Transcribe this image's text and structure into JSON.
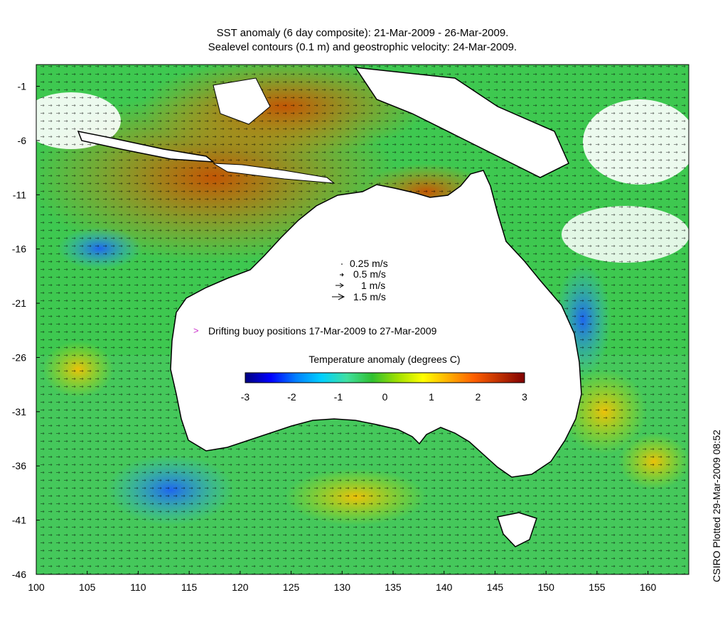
{
  "title_line1": "SST anomaly (6 day composite): 21-Mar-2009 - 26-Mar-2009.",
  "title_line2": "Sealevel contours (0.1 m) and geostrophic velocity: 24-Mar-2009.",
  "credit": "CSIRO Plotted 29-Mar-2009 08:52",
  "map": {
    "lon_range": [
      100,
      164
    ],
    "lat_range": [
      -46,
      1
    ],
    "x_ticks": [
      "100",
      "105",
      "110",
      "115",
      "120",
      "125",
      "130",
      "135",
      "140",
      "145",
      "150",
      "155",
      "160"
    ],
    "y_ticks": [
      "-1",
      "-6",
      "-11",
      "-16",
      "-21",
      "-26",
      "-31",
      "-36",
      "-41",
      "-46"
    ]
  },
  "velocity_legend": {
    "entries": [
      "0.25 m/s",
      "0.5 m/s",
      "1 m/s",
      "1.5 m/s"
    ]
  },
  "buoy_legend": {
    "label": "Drifting buoy positions 17-Mar-2009 to 27-Mar-2009",
    "marker": ">",
    "color": "#cc33cc"
  },
  "colorbar": {
    "title": "Temperature anomaly (degrees C)",
    "ticks": [
      "-3",
      "-2",
      "-1",
      "0",
      "1",
      "2",
      "3"
    ],
    "range": [
      -3,
      3
    ],
    "colors": [
      "#00007f",
      "#0000ff",
      "#0080ff",
      "#00d0ff",
      "#40e0a0",
      "#30c030",
      "#a0e000",
      "#ffff00",
      "#ffb000",
      "#ff6000",
      "#c03000",
      "#800000"
    ]
  }
}
